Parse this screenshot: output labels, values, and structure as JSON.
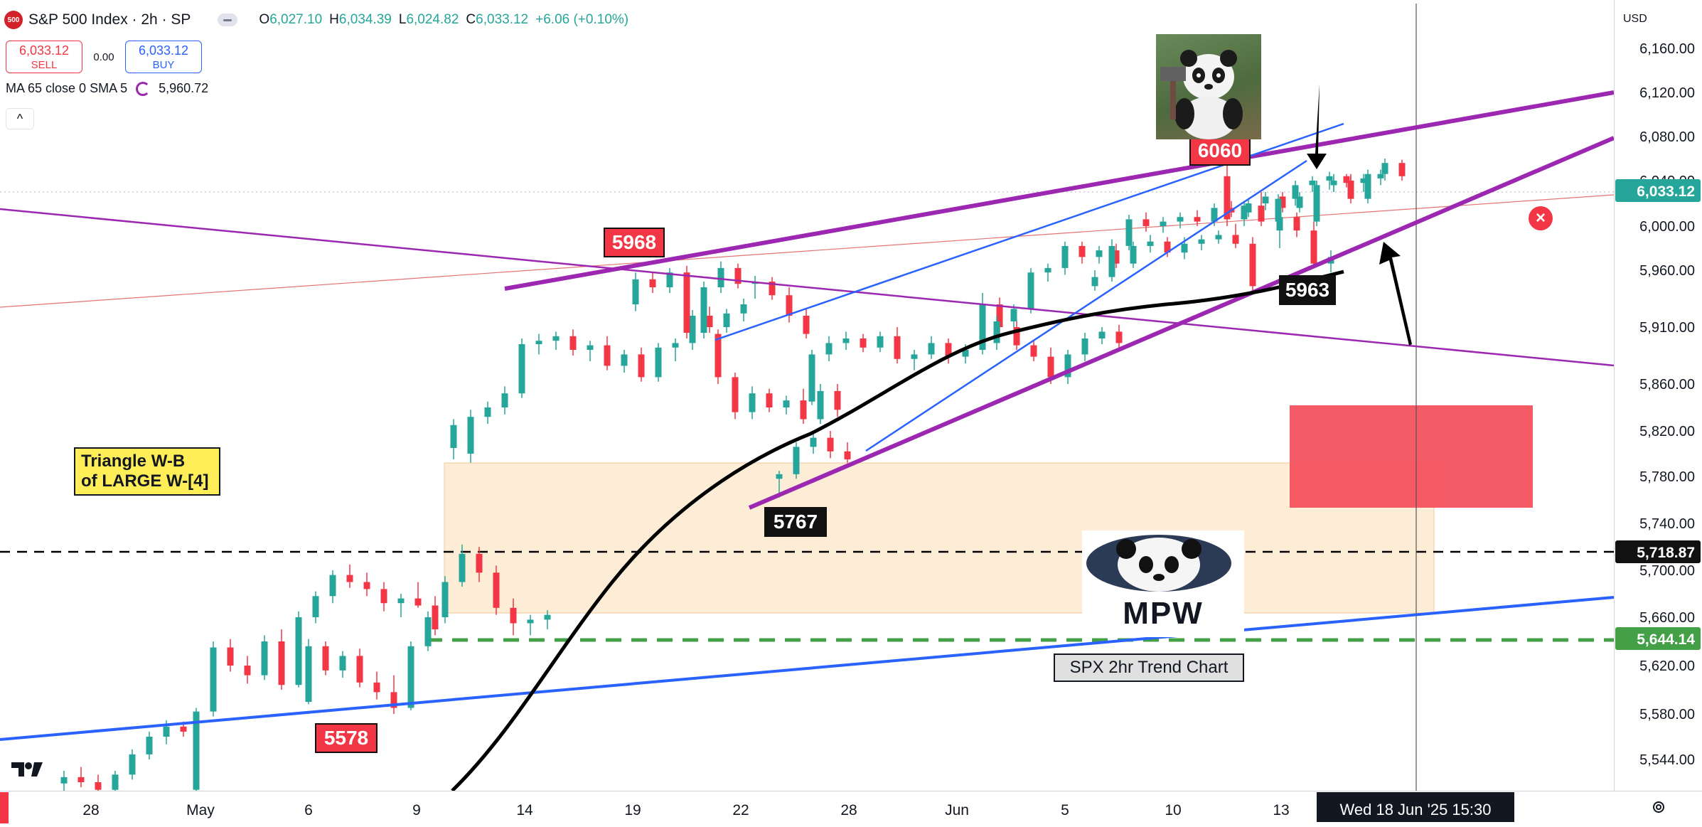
{
  "header": {
    "logo_text": "500",
    "title": "S&P 500 Index · 2h · SP",
    "ohlc": {
      "open_label": "O",
      "open": "6,027.10",
      "high_label": "H",
      "high": "6,034.39",
      "low_label": "L",
      "low": "6,024.82",
      "close_label": "C",
      "close": "6,033.12",
      "change": "+6.06 (+0.10%)"
    }
  },
  "trade": {
    "sell_price": "6,033.12",
    "sell_label": "SELL",
    "spread": "0.00",
    "buy_price": "6,033.12",
    "buy_label": "BUY"
  },
  "indicator": {
    "label": "MA 65 close 0 SMA 5",
    "value": "5,960.72"
  },
  "collapse_symbol": "^",
  "price_scale": {
    "currency": "USD",
    "ticks": [
      "6,160.00",
      "6,120.00",
      "6,080.00",
      "6,040.00",
      "6,000.00",
      "5,960.00",
      "5,910.00",
      "5,860.00",
      "5,820.00",
      "5,780.00",
      "5,740.00",
      "5,700.00",
      "5,660.00",
      "5,620.00",
      "5,580.00",
      "5,544.00"
    ],
    "last_price_badge": "6,033.12",
    "black_line_badge": "5,718.87",
    "green_line_badge": "5,644.14"
  },
  "time_axis": {
    "ticks": [
      "28",
      "May",
      "6",
      "9",
      "14",
      "19",
      "22",
      "28",
      "Jun",
      "5",
      "10",
      "13"
    ],
    "crosshair_label": "Wed 18 Jun '25   15:30"
  },
  "annotations": {
    "label_5968": "5968",
    "label_6060": "6060",
    "label_5963": "5963",
    "label_5767": "5767",
    "label_5578": "5578",
    "triangle_line1": "Triangle W-B",
    "triangle_line2": "of LARGE W-[4]",
    "trend_chart": "SPX 2hr Trend Chart",
    "logo_text": "MPW"
  },
  "colors": {
    "up": "#26a69a",
    "down": "#f23645",
    "purple": "#9c27b0",
    "blue": "#2962ff",
    "ma": "#000000",
    "zone": "#fde7c8",
    "red_box": "#f4525e"
  },
  "chart_data": {
    "type": "candlestick",
    "title": "S&P 500 Index · 2h · SP",
    "ylim": [
      5520,
      6180
    ],
    "candles": [
      {
        "o": 5525,
        "h": 5535,
        "l": 5515,
        "c": 5530
      },
      {
        "o": 5530,
        "h": 5538,
        "l": 5522,
        "c": 5526
      },
      {
        "o": 5526,
        "h": 5532,
        "l": 5512,
        "c": 5520
      },
      {
        "o": 5520,
        "h": 5535,
        "l": 5516,
        "c": 5532
      },
      {
        "o": 5532,
        "h": 5552,
        "l": 5528,
        "c": 5548
      },
      {
        "o": 5548,
        "h": 5566,
        "l": 5544,
        "c": 5562
      },
      {
        "o": 5562,
        "h": 5575,
        "l": 5556,
        "c": 5570
      },
      {
        "o": 5570,
        "h": 5574,
        "l": 5562,
        "c": 5566
      },
      {
        "o": 5520,
        "h": 5585,
        "l": 5518,
        "c": 5582
      },
      {
        "o": 5582,
        "h": 5640,
        "l": 5578,
        "c": 5635
      },
      {
        "o": 5635,
        "h": 5642,
        "l": 5615,
        "c": 5620
      },
      {
        "o": 5620,
        "h": 5628,
        "l": 5605,
        "c": 5612
      },
      {
        "o": 5612,
        "h": 5645,
        "l": 5608,
        "c": 5640
      },
      {
        "o": 5640,
        "h": 5650,
        "l": 5600,
        "c": 5604
      },
      {
        "o": 5604,
        "h": 5665,
        "l": 5602,
        "c": 5660
      },
      {
        "o": 5660,
        "h": 5682,
        "l": 5655,
        "c": 5678
      },
      {
        "o": 5678,
        "h": 5700,
        "l": 5672,
        "c": 5696
      },
      {
        "o": 5696,
        "h": 5705,
        "l": 5685,
        "c": 5690
      },
      {
        "o": 5690,
        "h": 5698,
        "l": 5678,
        "c": 5684
      },
      {
        "o": 5684,
        "h": 5690,
        "l": 5665,
        "c": 5672
      },
      {
        "o": 5672,
        "h": 5680,
        "l": 5660,
        "c": 5676
      },
      {
        "o": 5676,
        "h": 5690,
        "l": 5668,
        "c": 5670
      },
      {
        "o": 5670,
        "h": 5678,
        "l": 5645,
        "c": 5650
      },
      {
        "o": 5590,
        "h": 5642,
        "l": 5588,
        "c": 5636
      },
      {
        "o": 5636,
        "h": 5640,
        "l": 5612,
        "c": 5616
      },
      {
        "o": 5616,
        "h": 5632,
        "l": 5610,
        "c": 5628
      },
      {
        "o": 5628,
        "h": 5634,
        "l": 5602,
        "c": 5606
      },
      {
        "o": 5606,
        "h": 5615,
        "l": 5592,
        "c": 5598
      },
      {
        "o": 5598,
        "h": 5612,
        "l": 5580,
        "c": 5585
      },
      {
        "o": 5585,
        "h": 5640,
        "l": 5583,
        "c": 5636
      },
      {
        "o": 5636,
        "h": 5665,
        "l": 5632,
        "c": 5660
      },
      {
        "o": 5660,
        "h": 5695,
        "l": 5655,
        "c": 5690
      },
      {
        "o": 5690,
        "h": 5722,
        "l": 5686,
        "c": 5714
      },
      {
        "o": 5714,
        "h": 5720,
        "l": 5690,
        "c": 5698
      },
      {
        "o": 5698,
        "h": 5704,
        "l": 5662,
        "c": 5668
      },
      {
        "o": 5668,
        "h": 5676,
        "l": 5645,
        "c": 5655
      },
      {
        "o": 5655,
        "h": 5662,
        "l": 5645,
        "c": 5658
      },
      {
        "o": 5658,
        "h": 5666,
        "l": 5650,
        "c": 5662
      },
      {
        "o": 5805,
        "h": 5830,
        "l": 5795,
        "c": 5825
      },
      {
        "o": 5800,
        "h": 5838,
        "l": 5792,
        "c": 5832
      },
      {
        "o": 5832,
        "h": 5845,
        "l": 5826,
        "c": 5840
      },
      {
        "o": 5840,
        "h": 5858,
        "l": 5834,
        "c": 5852
      },
      {
        "o": 5852,
        "h": 5900,
        "l": 5848,
        "c": 5895
      },
      {
        "o": 5895,
        "h": 5904,
        "l": 5886,
        "c": 5898
      },
      {
        "o": 5898,
        "h": 5906,
        "l": 5890,
        "c": 5902
      },
      {
        "o": 5902,
        "h": 5908,
        "l": 5885,
        "c": 5890
      },
      {
        "o": 5890,
        "h": 5898,
        "l": 5880,
        "c": 5894
      },
      {
        "o": 5894,
        "h": 5902,
        "l": 5872,
        "c": 5876
      },
      {
        "o": 5876,
        "h": 5890,
        "l": 5870,
        "c": 5886
      },
      {
        "o": 5886,
        "h": 5892,
        "l": 5862,
        "c": 5866
      },
      {
        "o": 5866,
        "h": 5896,
        "l": 5862,
        "c": 5892
      },
      {
        "o": 5892,
        "h": 5900,
        "l": 5880,
        "c": 5896
      },
      {
        "o": 5896,
        "h": 5925,
        "l": 5890,
        "c": 5920
      },
      {
        "o": 5920,
        "h": 5928,
        "l": 5905,
        "c": 5910
      },
      {
        "o": 5910,
        "h": 5926,
        "l": 5905,
        "c": 5922
      },
      {
        "o": 5922,
        "h": 5935,
        "l": 5915,
        "c": 5930
      },
      {
        "o": 5930,
        "h": 5958,
        "l": 5924,
        "c": 5952
      },
      {
        "o": 5952,
        "h": 5958,
        "l": 5940,
        "c": 5945
      },
      {
        "o": 5945,
        "h": 5962,
        "l": 5940,
        "c": 5958
      },
      {
        "o": 5958,
        "h": 5964,
        "l": 5900,
        "c": 5905
      },
      {
        "o": 5905,
        "h": 5950,
        "l": 5900,
        "c": 5945
      },
      {
        "o": 5945,
        "h": 5968,
        "l": 5940,
        "c": 5962
      },
      {
        "o": 5962,
        "h": 5966,
        "l": 5944,
        "c": 5948
      },
      {
        "o": 5948,
        "h": 5955,
        "l": 5935,
        "c": 5950
      },
      {
        "o": 5950,
        "h": 5954,
        "l": 5934,
        "c": 5938
      },
      {
        "o": 5938,
        "h": 5945,
        "l": 5914,
        "c": 5920
      },
      {
        "o": 5920,
        "h": 5926,
        "l": 5900,
        "c": 5904
      },
      {
        "o": 5904,
        "h": 5908,
        "l": 5860,
        "c": 5866
      },
      {
        "o": 5866,
        "h": 5870,
        "l": 5830,
        "c": 5836
      },
      {
        "o": 5836,
        "h": 5858,
        "l": 5830,
        "c": 5852
      },
      {
        "o": 5852,
        "h": 5856,
        "l": 5836,
        "c": 5840
      },
      {
        "o": 5840,
        "h": 5850,
        "l": 5834,
        "c": 5846
      },
      {
        "o": 5846,
        "h": 5856,
        "l": 5826,
        "c": 5830
      },
      {
        "o": 5830,
        "h": 5860,
        "l": 5826,
        "c": 5854
      },
      {
        "o": 5854,
        "h": 5860,
        "l": 5832,
        "c": 5838
      },
      {
        "o": 5778,
        "h": 5785,
        "l": 5762,
        "c": 5782
      },
      {
        "o": 5782,
        "h": 5810,
        "l": 5778,
        "c": 5806
      },
      {
        "o": 5806,
        "h": 5820,
        "l": 5800,
        "c": 5814
      },
      {
        "o": 5814,
        "h": 5820,
        "l": 5796,
        "c": 5802
      },
      {
        "o": 5802,
        "h": 5810,
        "l": 5792,
        "c": 5795
      },
      {
        "o": 5845,
        "h": 5890,
        "l": 5842,
        "c": 5886
      },
      {
        "o": 5886,
        "h": 5902,
        "l": 5880,
        "c": 5896
      },
      {
        "o": 5896,
        "h": 5906,
        "l": 5890,
        "c": 5900
      },
      {
        "o": 5900,
        "h": 5904,
        "l": 5888,
        "c": 5892
      },
      {
        "o": 5892,
        "h": 5906,
        "l": 5888,
        "c": 5902
      },
      {
        "o": 5902,
        "h": 5910,
        "l": 5878,
        "c": 5882
      },
      {
        "o": 5882,
        "h": 5890,
        "l": 5872,
        "c": 5886
      },
      {
        "o": 5886,
        "h": 5902,
        "l": 5882,
        "c": 5896
      },
      {
        "o": 5896,
        "h": 5900,
        "l": 5878,
        "c": 5884
      },
      {
        "o": 5884,
        "h": 5895,
        "l": 5878,
        "c": 5890
      },
      {
        "o": 5890,
        "h": 5940,
        "l": 5886,
        "c": 5930
      },
      {
        "o": 5930,
        "h": 5936,
        "l": 5905,
        "c": 5910
      },
      {
        "o": 5910,
        "h": 5916,
        "l": 5890,
        "c": 5894
      },
      {
        "o": 5894,
        "h": 5898,
        "l": 5880,
        "c": 5884
      },
      {
        "o": 5884,
        "h": 5892,
        "l": 5860,
        "c": 5866
      },
      {
        "o": 5866,
        "h": 5890,
        "l": 5860,
        "c": 5886
      },
      {
        "o": 5886,
        "h": 5905,
        "l": 5880,
        "c": 5900
      },
      {
        "o": 5900,
        "h": 5910,
        "l": 5895,
        "c": 5906
      },
      {
        "o": 5906,
        "h": 5912,
        "l": 5890,
        "c": 5896
      },
      {
        "o": 5896,
        "h": 5920,
        "l": 5890,
        "c": 5915
      },
      {
        "o": 5915,
        "h": 5930,
        "l": 5910,
        "c": 5926
      },
      {
        "o": 5926,
        "h": 5962,
        "l": 5922,
        "c": 5958
      },
      {
        "o": 5958,
        "h": 5966,
        "l": 5950,
        "c": 5962
      },
      {
        "o": 5962,
        "h": 5986,
        "l": 5956,
        "c": 5982
      },
      {
        "o": 5982,
        "h": 5986,
        "l": 5966,
        "c": 5972
      },
      {
        "o": 5972,
        "h": 5982,
        "l": 5966,
        "c": 5978
      },
      {
        "o": 5978,
        "h": 5984,
        "l": 5962,
        "c": 5966
      },
      {
        "o": 5966,
        "h": 5986,
        "l": 5962,
        "c": 5982
      },
      {
        "o": 5982,
        "h": 5992,
        "l": 5976,
        "c": 5986
      },
      {
        "o": 5986,
        "h": 5990,
        "l": 5972,
        "c": 5976
      },
      {
        "o": 5976,
        "h": 5990,
        "l": 5970,
        "c": 5984
      },
      {
        "o": 5984,
        "h": 5992,
        "l": 5978,
        "c": 5988
      },
      {
        "o": 5988,
        "h": 5996,
        "l": 5984,
        "c": 5992
      },
      {
        "o": 5992,
        "h": 6002,
        "l": 5980,
        "c": 5984
      },
      {
        "o": 5984,
        "h": 5990,
        "l": 5940,
        "c": 5946
      },
      {
        "o": 5946,
        "h": 5960,
        "l": 5942,
        "c": 5954
      },
      {
        "o": 5954,
        "h": 5988,
        "l": 5950,
        "c": 5982
      },
      {
        "o": 5982,
        "h": 6010,
        "l": 5978,
        "c": 6006
      },
      {
        "o": 6006,
        "h": 6012,
        "l": 5995,
        "c": 6000
      },
      {
        "o": 6000,
        "h": 6008,
        "l": 5994,
        "c": 6004
      },
      {
        "o": 6004,
        "h": 6012,
        "l": 5998,
        "c": 6008
      },
      {
        "o": 6008,
        "h": 6014,
        "l": 6000,
        "c": 6004
      },
      {
        "o": 6004,
        "h": 6020,
        "l": 6000,
        "c": 6016
      },
      {
        "o": 6016,
        "h": 6022,
        "l": 6008,
        "c": 6012
      },
      {
        "o": 6012,
        "h": 6024,
        "l": 6008,
        "c": 6020
      },
      {
        "o": 6020,
        "h": 6030,
        "l": 6014,
        "c": 6026
      },
      {
        "o": 6026,
        "h": 6030,
        "l": 6012,
        "c": 6016
      },
      {
        "o": 6016,
        "h": 6030,
        "l": 6012,
        "c": 6026
      },
      {
        "o": 6026,
        "h": 6040,
        "l": 6022,
        "c": 6036
      },
      {
        "o": 6036,
        "h": 6044,
        "l": 6030,
        "c": 6040
      },
      {
        "o": 6040,
        "h": 6046,
        "l": 6020,
        "c": 6024
      },
      {
        "o": 6024,
        "h": 6050,
        "l": 6020,
        "c": 6046
      },
      {
        "o": 6046,
        "h": 6060,
        "l": 6040,
        "c": 6056
      },
      {
        "o": 6056,
        "h": 6059,
        "l": 6040,
        "c": 6044
      },
      {
        "o": 6044,
        "h": 6058,
        "l": 6000,
        "c": 6006
      },
      {
        "o": 6006,
        "h": 6022,
        "l": 6000,
        "c": 6018
      },
      {
        "o": 6018,
        "h": 6030,
        "l": 6000,
        "c": 6004
      },
      {
        "o": 6004,
        "h": 6028,
        "l": 6000,
        "c": 6024
      },
      {
        "o": 6024,
        "h": 6040,
        "l": 6018,
        "c": 6036
      },
      {
        "o": 6036,
        "h": 6044,
        "l": 6030,
        "c": 6040
      },
      {
        "o": 6040,
        "h": 6048,
        "l": 6032,
        "c": 6044
      },
      {
        "o": 6044,
        "h": 6046,
        "l": 6034,
        "c": 6038
      },
      {
        "o": 6038,
        "h": 6046,
        "l": 6030,
        "c": 6042
      },
      {
        "o": 6042,
        "h": 6050,
        "l": 6036,
        "c": 6046
      },
      {
        "o": 5996,
        "h": 6012,
        "l": 5980,
        "c": 6008
      },
      {
        "o": 6008,
        "h": 6012,
        "l": 5990,
        "c": 5996
      },
      {
        "o": 5996,
        "h": 6004,
        "l": 5962,
        "c": 5966
      },
      {
        "o": 5966,
        "h": 5978,
        "l": 5958,
        "c": 5972
      },
      {
        "o": 6004,
        "h": 6040,
        "l": 6000,
        "c": 6036
      },
      {
        "o": 6036,
        "h": 6046,
        "l": 6030,
        "c": 6040
      },
      {
        "o": 6040,
        "h": 6044,
        "l": 6024,
        "c": 6028
      },
      {
        "o": 6028,
        "h": 6034,
        "l": 6024,
        "c": 6033
      }
    ]
  }
}
